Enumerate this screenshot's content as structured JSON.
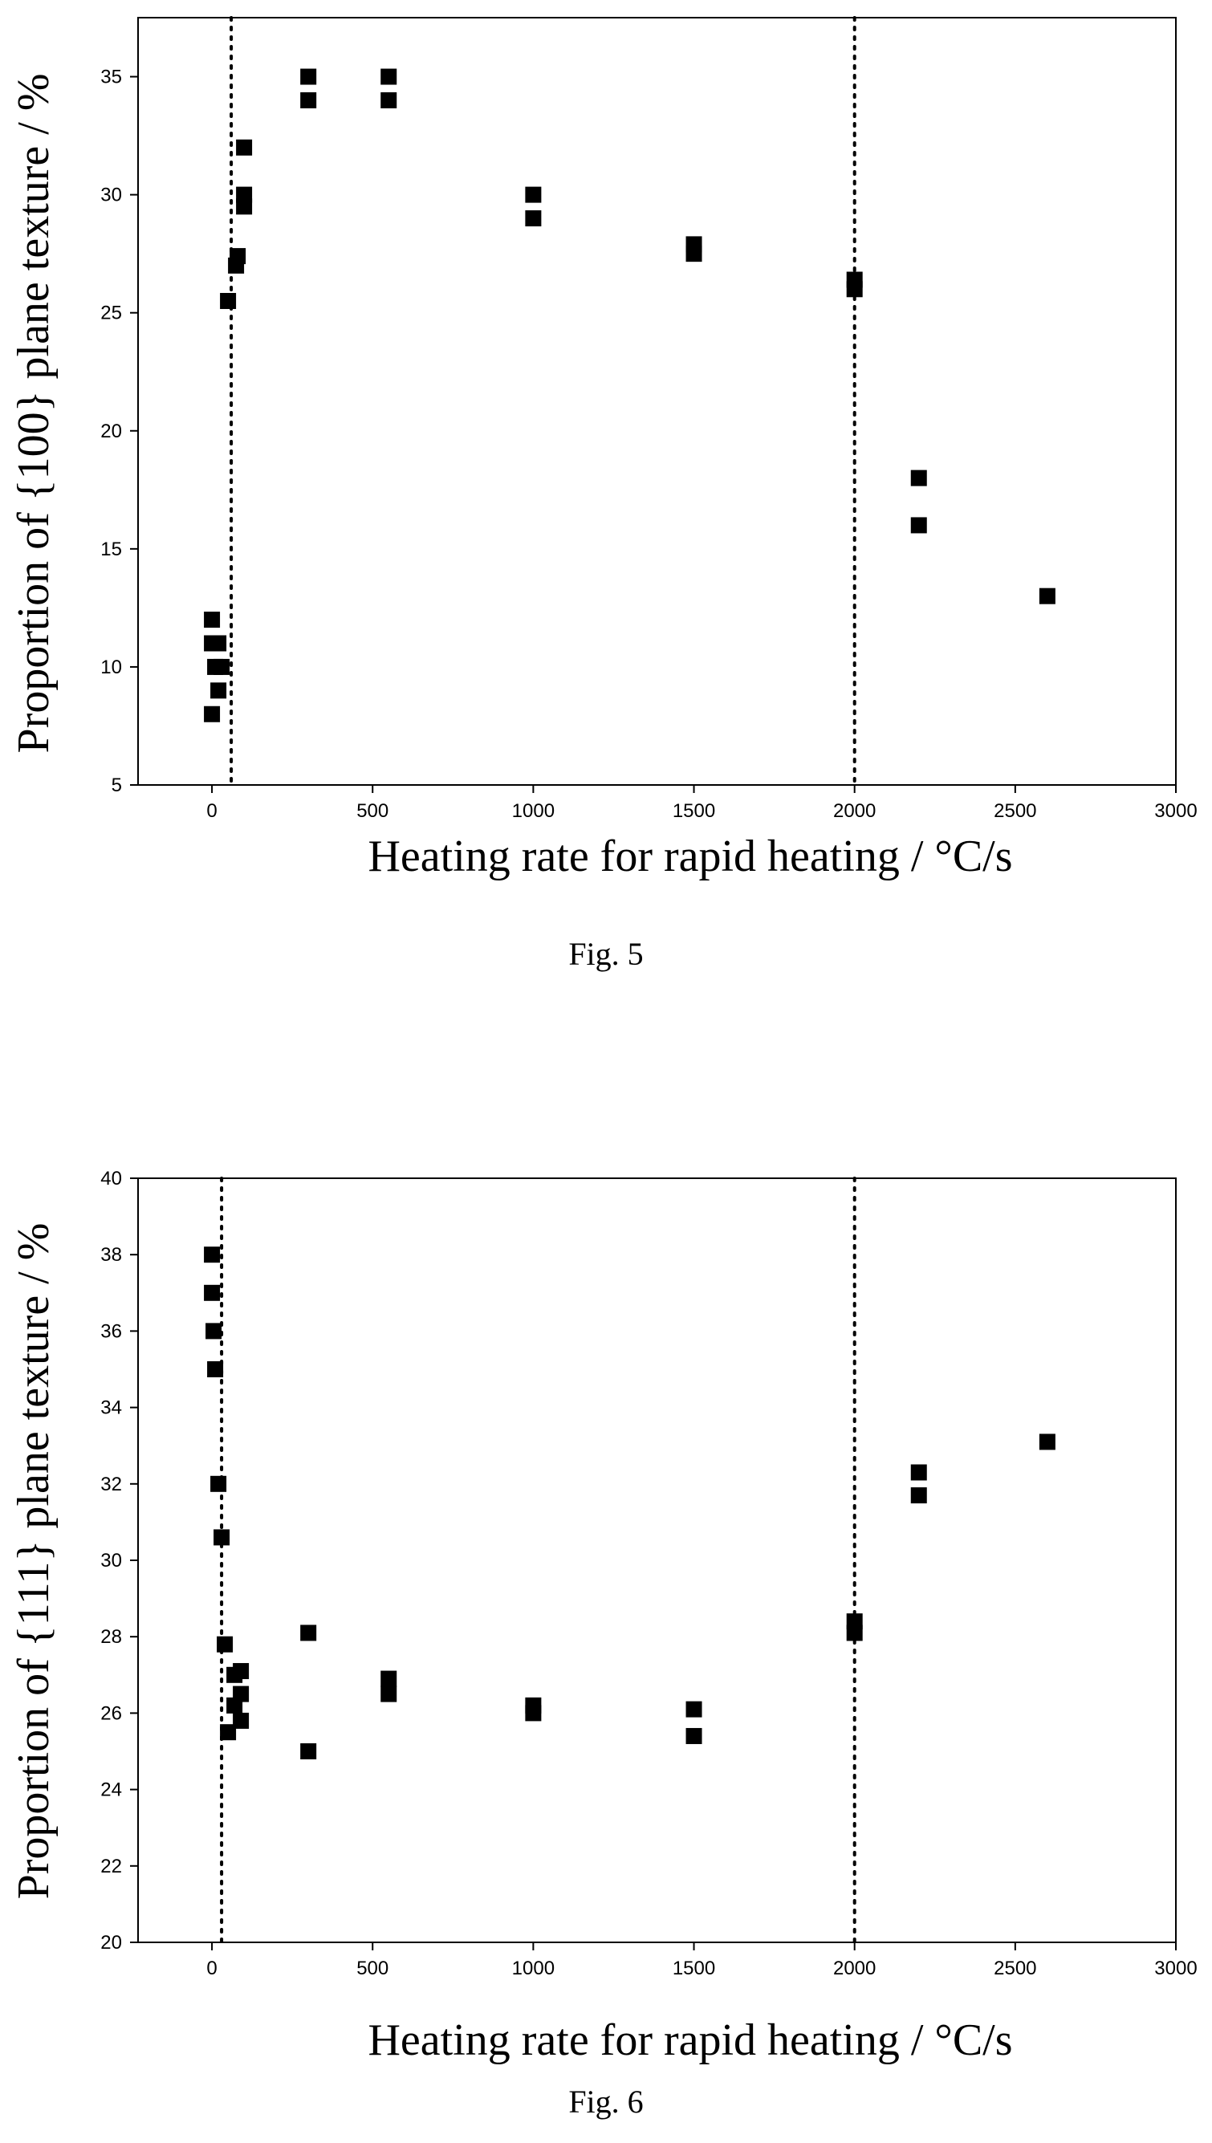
{
  "chart_data": [
    {
      "type": "scatter",
      "xlabel": "Heating rate for rapid heating / °C/s",
      "ylabel": "Proportion of {100} plane texture / %",
      "xlim": [
        -230,
        3000
      ],
      "ylim": [
        5,
        37.5
      ],
      "xticks": [
        0,
        500,
        1000,
        1500,
        2000,
        2500,
        3000
      ],
      "yticks": [
        5,
        10,
        15,
        20,
        25,
        30,
        35
      ],
      "reference_lines_x": [
        60,
        2000
      ],
      "marker": "square",
      "points": [
        {
          "x": 0,
          "y": 12
        },
        {
          "x": 0,
          "y": 11
        },
        {
          "x": 20,
          "y": 11
        },
        {
          "x": 10,
          "y": 10
        },
        {
          "x": 30,
          "y": 10
        },
        {
          "x": 20,
          "y": 9
        },
        {
          "x": 0,
          "y": 8
        },
        {
          "x": 50,
          "y": 25.5
        },
        {
          "x": 75,
          "y": 27
        },
        {
          "x": 80,
          "y": 27.4
        },
        {
          "x": 100,
          "y": 29.5
        },
        {
          "x": 100,
          "y": 30
        },
        {
          "x": 100,
          "y": 32
        },
        {
          "x": 300,
          "y": 34
        },
        {
          "x": 300,
          "y": 35
        },
        {
          "x": 550,
          "y": 34
        },
        {
          "x": 550,
          "y": 35
        },
        {
          "x": 1000,
          "y": 29
        },
        {
          "x": 1000,
          "y": 30
        },
        {
          "x": 1500,
          "y": 27.5
        },
        {
          "x": 1500,
          "y": 27.9
        },
        {
          "x": 2000,
          "y": 26
        },
        {
          "x": 2000,
          "y": 26.4
        },
        {
          "x": 2200,
          "y": 16
        },
        {
          "x": 2200,
          "y": 18
        },
        {
          "x": 2600,
          "y": 13
        }
      ]
    },
    {
      "type": "scatter",
      "xlabel": "Heating rate for rapid heating / °C/s",
      "ylabel": "Proportion of {111} plane texture / %",
      "xlim": [
        -230,
        3000
      ],
      "ylim": [
        20,
        40
      ],
      "xticks": [
        0,
        500,
        1000,
        1500,
        2000,
        2500,
        3000
      ],
      "yticks": [
        20,
        22,
        24,
        26,
        28,
        30,
        32,
        34,
        36,
        38,
        40
      ],
      "reference_lines_x": [
        30,
        2000
      ],
      "marker": "square",
      "points": [
        {
          "x": 0,
          "y": 38
        },
        {
          "x": 0,
          "y": 37
        },
        {
          "x": 5,
          "y": 36
        },
        {
          "x": 10,
          "y": 35
        },
        {
          "x": 20,
          "y": 32
        },
        {
          "x": 30,
          "y": 30.6
        },
        {
          "x": 40,
          "y": 27.8
        },
        {
          "x": 50,
          "y": 25.5
        },
        {
          "x": 70,
          "y": 27
        },
        {
          "x": 70,
          "y": 26.2
        },
        {
          "x": 90,
          "y": 27.1
        },
        {
          "x": 90,
          "y": 26.5
        },
        {
          "x": 90,
          "y": 25.8
        },
        {
          "x": 300,
          "y": 28.1
        },
        {
          "x": 300,
          "y": 25
        },
        {
          "x": 550,
          "y": 26.9
        },
        {
          "x": 550,
          "y": 26.5
        },
        {
          "x": 1000,
          "y": 26.2
        },
        {
          "x": 1000,
          "y": 26
        },
        {
          "x": 1500,
          "y": 26.1
        },
        {
          "x": 1500,
          "y": 25.4
        },
        {
          "x": 2000,
          "y": 28.4
        },
        {
          "x": 2000,
          "y": 28.1
        },
        {
          "x": 2200,
          "y": 32.3
        },
        {
          "x": 2200,
          "y": 31.7
        },
        {
          "x": 2600,
          "y": 33.1
        }
      ]
    }
  ],
  "captions": {
    "fig5": "Fig. 5",
    "fig6": "Fig. 6"
  }
}
